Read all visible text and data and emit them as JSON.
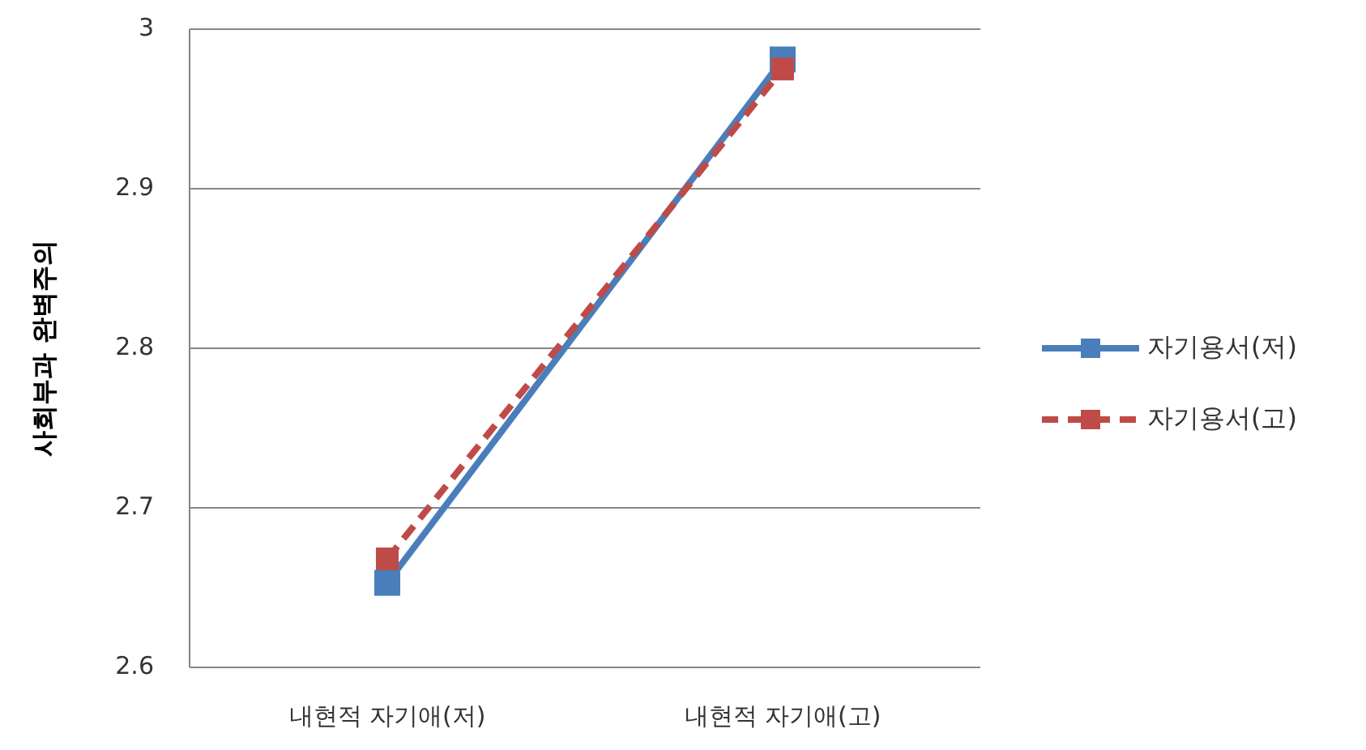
{
  "chart_data": {
    "type": "line",
    "ylabel": "사회부과 완벽주의",
    "categories": [
      "내현적 자기애(저)",
      "내현적 자기애(고)"
    ],
    "series": [
      {
        "name": "자기용서(저)",
        "color": "#4a7ebb",
        "values": [
          2.653,
          2.981
        ],
        "line_style": "solid"
      },
      {
        "name": "자기용서(고)",
        "color": "#be4b48",
        "values": [
          2.668,
          2.975
        ],
        "line_style": "dashed"
      }
    ],
    "ylim": [
      2.6,
      3
    ],
    "yticks": [
      2.6,
      2.7,
      2.8,
      2.9,
      3
    ],
    "grid": "y",
    "legend": "right",
    "marker": "square"
  }
}
